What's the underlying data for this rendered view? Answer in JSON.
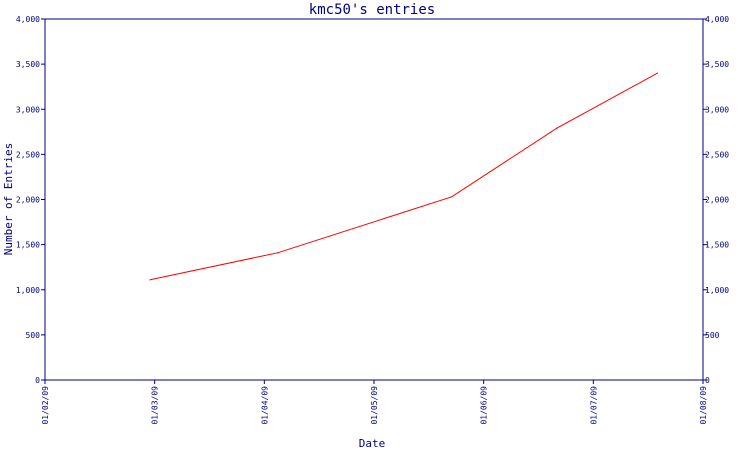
{
  "chart_data": {
    "type": "line",
    "title": "kmc50's entries",
    "xlabel": "Date",
    "ylabel": "Number of Entries",
    "x_ticks": [
      "01/02/09",
      "01/03/09",
      "01/04/09",
      "01/05/09",
      "01/06/09",
      "01/07/09",
      "01/08/09"
    ],
    "y_ticks": [
      "0",
      "500",
      "1,000",
      "1,500",
      "2,000",
      "2,500",
      "3,000",
      "3,500",
      "4,000"
    ],
    "ylim": [
      0,
      4000
    ],
    "xlim": [
      "2009-01-02",
      "2009-01-08"
    ],
    "grid": false,
    "line_color": "#ff0000",
    "axis_color": "#000080",
    "series": [
      {
        "x": [
          "2009-01-02T23:00",
          "2009-01-04T03:00",
          "2009-01-05T17:00",
          "2009-01-06T16:00",
          "2009-01-07T14:00"
        ],
        "values": [
          1110,
          1410,
          2030,
          2790,
          3400
        ]
      }
    ]
  }
}
